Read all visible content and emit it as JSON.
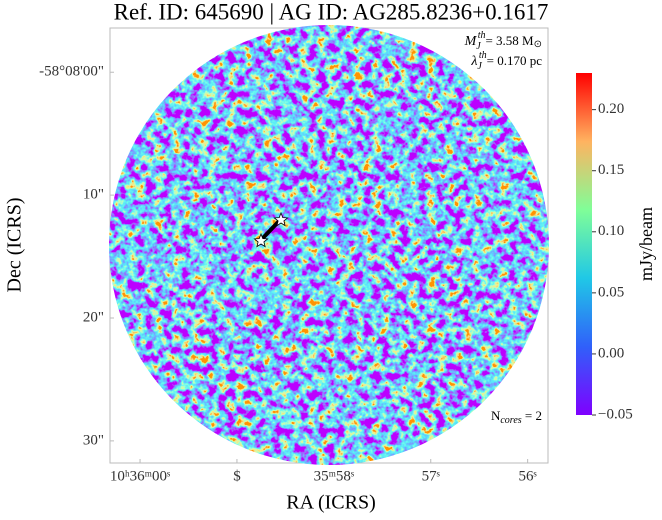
{
  "chart_data": {
    "type": "image",
    "title": "Ref. ID: 645690 | AG ID: AG285.8236+0.1617",
    "xlabel": "RA (ICRS)",
    "ylabel": "Dec (ICRS)",
    "xlim": [
      60.31,
      55.79
    ],
    "xticks": [
      {
        "value": 60,
        "label": "10ʰ36ᵐ00ˢ"
      },
      {
        "value": 59,
        "label": "$"
      },
      {
        "value": 58,
        "label": "35ᵐ58ˢ"
      },
      {
        "value": 57,
        "label": "57ˢ"
      },
      {
        "value": 56,
        "label": "56ˢ"
      }
    ],
    "ylim": [
      -3.6,
      31.8
    ],
    "yticks": [
      {
        "value": 0,
        "label": "-58°08'00\""
      },
      {
        "value": 10,
        "label": "10\""
      },
      {
        "value": 20,
        "label": "20\""
      },
      {
        "value": 30,
        "label": "30\""
      }
    ],
    "colorbar": {
      "label": "mJy/beam",
      "clim": [
        -0.05,
        0.23
      ],
      "ticks": [
        {
          "value": 0.2,
          "label": "0.20"
        },
        {
          "value": 0.15,
          "label": "0.15"
        },
        {
          "value": 0.1,
          "label": "0.10"
        },
        {
          "value": 0.05,
          "label": "0.05"
        },
        {
          "value": 0,
          "label": "0.00"
        },
        {
          "value": -0.05,
          "label": "−0.05"
        }
      ]
    },
    "annotations": {
      "mass": [
        "M",
        "J",
        "th",
        "= 3.58 M",
        "⊙"
      ],
      "length": [
        "λ",
        "J",
        "th",
        "= 0.170 pc"
      ],
      "cores": [
        "N",
        "cores",
        " = 2"
      ]
    }
  }
}
